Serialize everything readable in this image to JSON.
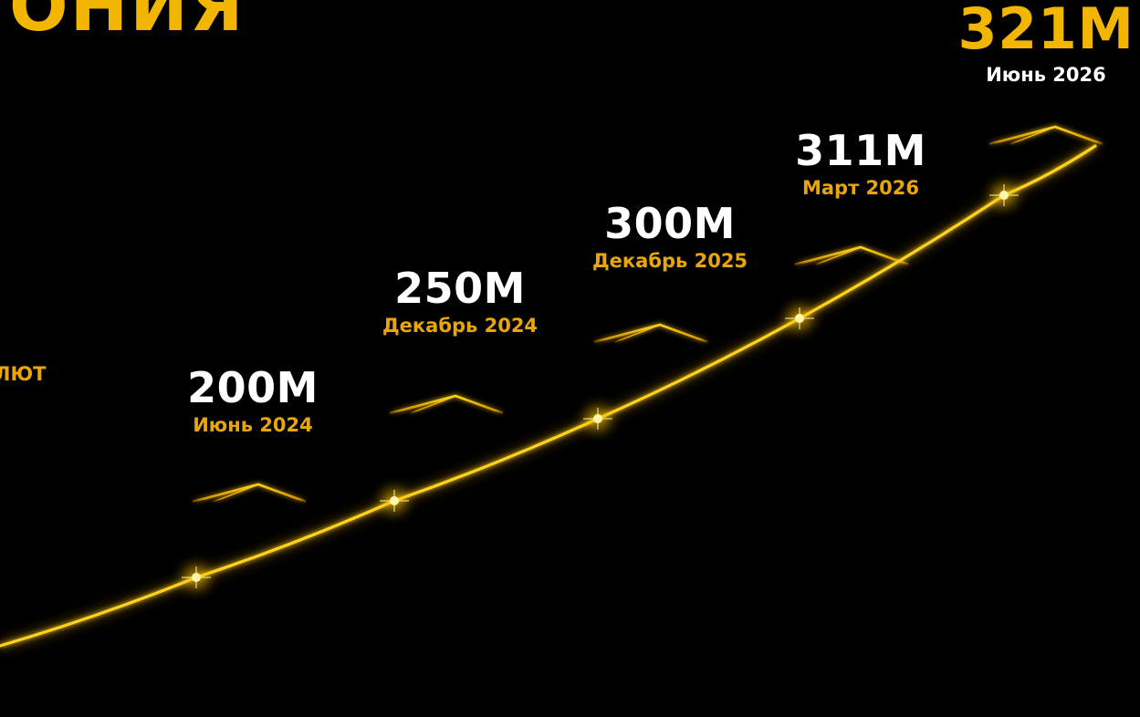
{
  "fragments": {
    "title_partial": "ОНИЯ",
    "side_partial": "ЛЮТ"
  },
  "colors": {
    "background": "#000000",
    "accent": "#f2b600",
    "accent_text": "#e8a60a",
    "line": "#ffd21a"
  },
  "chart_data": {
    "type": "line",
    "x": [
      "Июнь 2024",
      "Декабрь 2024",
      "Декабрь 2025",
      "Март 2026",
      "Июнь 2026"
    ],
    "values": [
      200,
      250,
      300,
      311,
      321
    ],
    "data_labels": [
      "200M",
      "250M",
      "300M",
      "311M",
      "321M"
    ],
    "unit": "M",
    "highlight_last": true
  }
}
